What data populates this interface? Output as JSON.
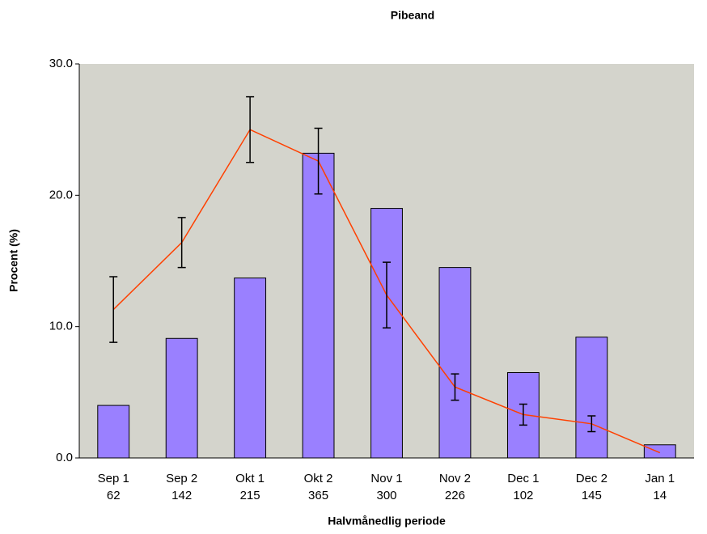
{
  "chart_data": {
    "type": "bar-line",
    "title": "Pibeand",
    "y_label": "Procent (%)",
    "x_label": "Halvmånedlig periode",
    "categories": [
      "Sep 1",
      "Sep 2",
      "Okt 1",
      "Okt 2",
      "Nov 1",
      "Nov 2",
      "Dec 1",
      "Dec 2",
      "Jan 1"
    ],
    "category_counts": [
      62,
      142,
      215,
      365,
      300,
      226,
      102,
      145,
      14
    ],
    "series": [
      {
        "type": "bar",
        "color": "#9a80ff",
        "values": [
          4.0,
          9.1,
          13.7,
          23.2,
          19.0,
          14.5,
          6.5,
          9.2,
          1.0
        ]
      },
      {
        "type": "line",
        "color": "#ff4000",
        "values": [
          11.3,
          16.4,
          25.0,
          22.6,
          12.4,
          5.4,
          3.3,
          2.6,
          0.4
        ],
        "errors": [
          2.5,
          1.9,
          2.5,
          2.5,
          2.5,
          1.0,
          0.8,
          0.6,
          null
        ]
      }
    ],
    "ylim": [
      0,
      30
    ],
    "yticks": [
      {
        "value": 0,
        "label": "0.0"
      },
      {
        "value": 10,
        "label": "10.0"
      },
      {
        "value": 20,
        "label": "20.0"
      },
      {
        "value": 30,
        "label": "30.0"
      }
    ],
    "background": "#d4d4cc"
  }
}
